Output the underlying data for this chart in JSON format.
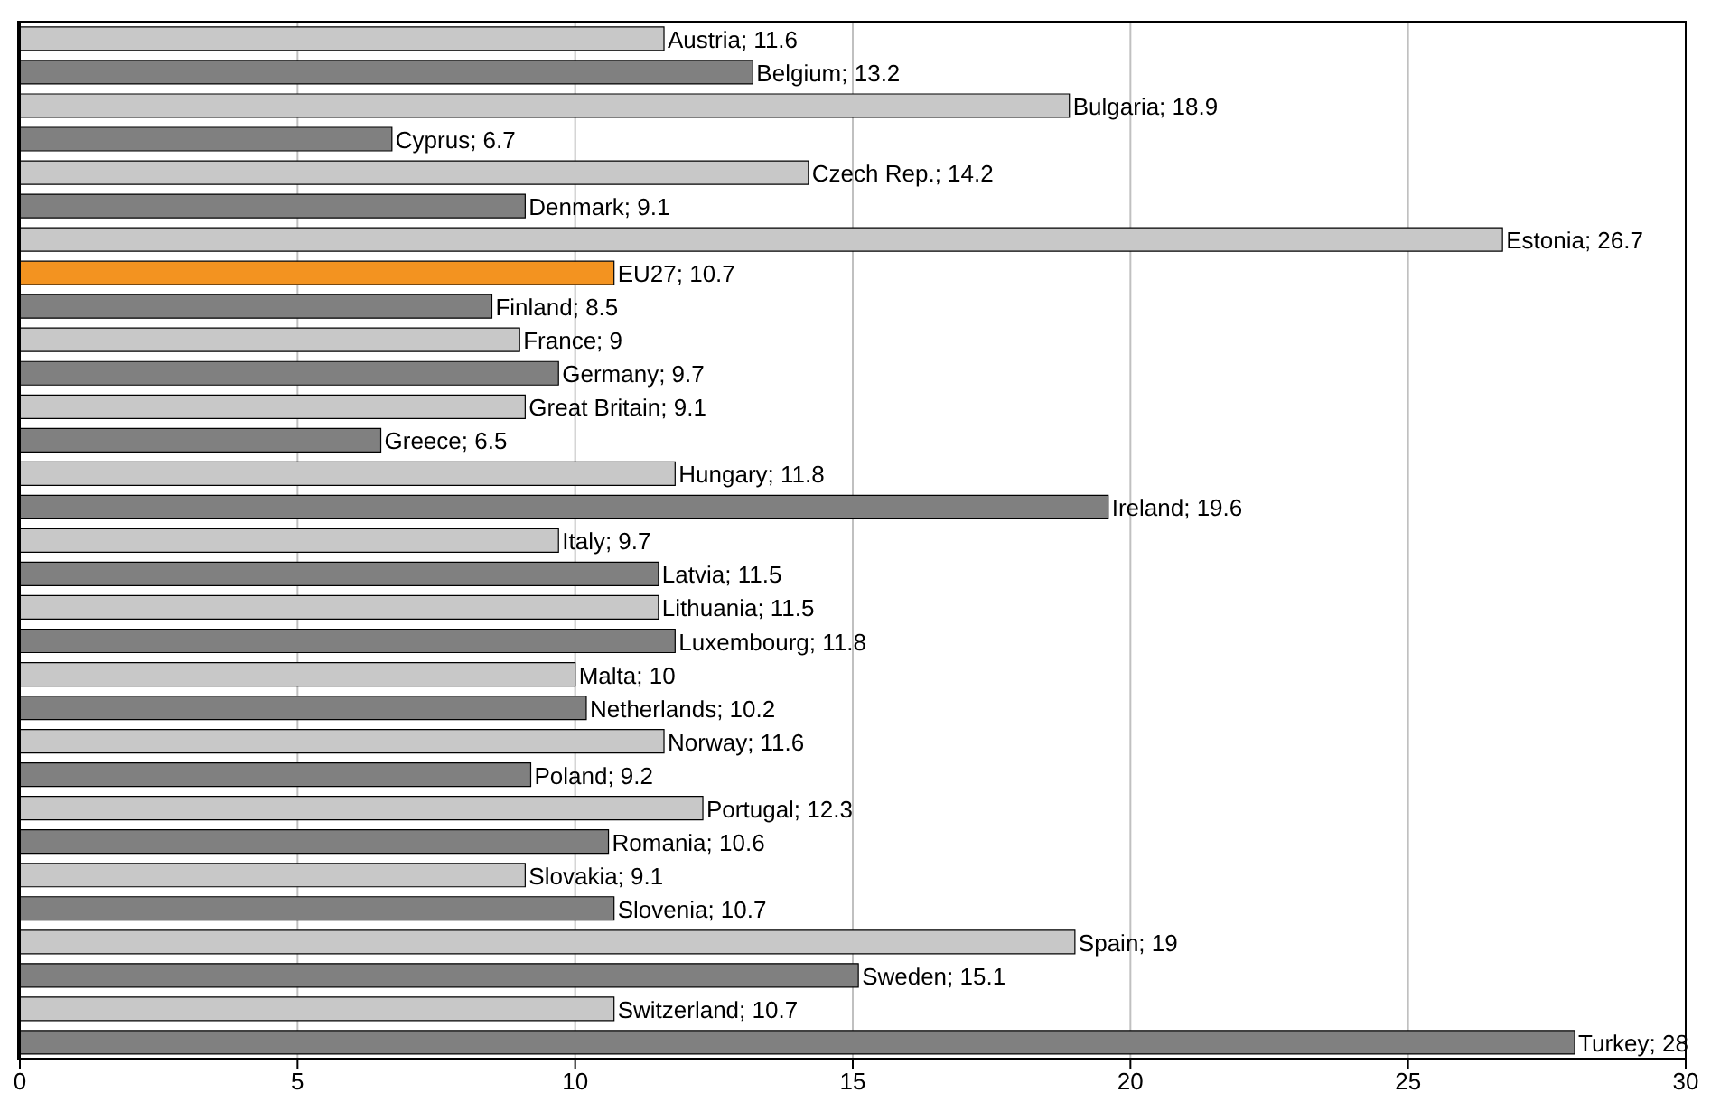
{
  "chart_data": {
    "type": "bar",
    "orientation": "horizontal",
    "categories": [
      null,
      null,
      null,
      null,
      null,
      null,
      null,
      null,
      null,
      null,
      null,
      null,
      null,
      null,
      null,
      null,
      null,
      null,
      null,
      null,
      null,
      null,
      null,
      null,
      null,
      null,
      null,
      null,
      null,
      null,
      null
    ],
    "values": [
      11.6,
      13.2,
      18.9,
      6.7,
      14.2,
      9.1,
      26.7,
      10.7,
      8.5,
      9,
      9.7,
      9.1,
      6.5,
      11.8,
      19.6,
      9.7,
      11.5,
      11.5,
      11.8,
      10,
      10.2,
      11.6,
      9.2,
      12.3,
      10.6,
      9.1,
      10.7,
      19,
      15.1,
      10.7,
      28
    ],
    "value_labels": [
      "Austria; 11.6",
      "Belgium; 13.2",
      "Bulgaria; 18.9",
      "Cyprus; 6.7",
      "Czech Rep.; 14.2",
      "Denmark; 9.1",
      "Estonia; 26.7",
      "EU27; 10.7",
      "Finland; 8.5",
      "France; 9",
      "Germany; 9.7",
      "Great Britain; 9.1",
      "Greece; 6.5",
      "Hungary; 11.8",
      "Ireland; 19.6",
      "Italy; 9.7",
      "Latvia; 11.5",
      "Lithuania; 11.5",
      "Luxembourg; 11.8",
      "Malta; 10",
      "Netherlands; 10.2",
      "Norway; 11.6",
      "Poland; 9.2",
      "Portugal; 12.3",
      "Romania; 10.6",
      "Slovakia; 9.1",
      "Slovenia; 10.7",
      "Spain; 19",
      "Sweden; 15.1",
      "Switzerland; 10.7",
      "Turkey; 28"
    ],
    "colors": [
      "#c8c8c8",
      "#808080",
      "#c8c8c8",
      "#808080",
      "#c8c8c8",
      "#808080",
      "#c8c8c8",
      "#f39320",
      "#808080",
      "#c8c8c8",
      "#808080",
      "#c8c8c8",
      "#808080",
      "#c8c8c8",
      "#808080",
      "#c8c8c8",
      "#808080",
      "#c8c8c8",
      "#808080",
      "#c8c8c8",
      "#808080",
      "#c8c8c8",
      "#808080",
      "#c8c8c8",
      "#808080",
      "#c8c8c8",
      "#808080",
      "#c8c8c8",
      "#808080",
      "#c8c8c8",
      "#808080"
    ],
    "xlim": [
      0,
      30
    ],
    "xticks": [
      0,
      5,
      10,
      15,
      20,
      25,
      30
    ],
    "grid": "x",
    "tick_labels": "x",
    "legend": false
  }
}
